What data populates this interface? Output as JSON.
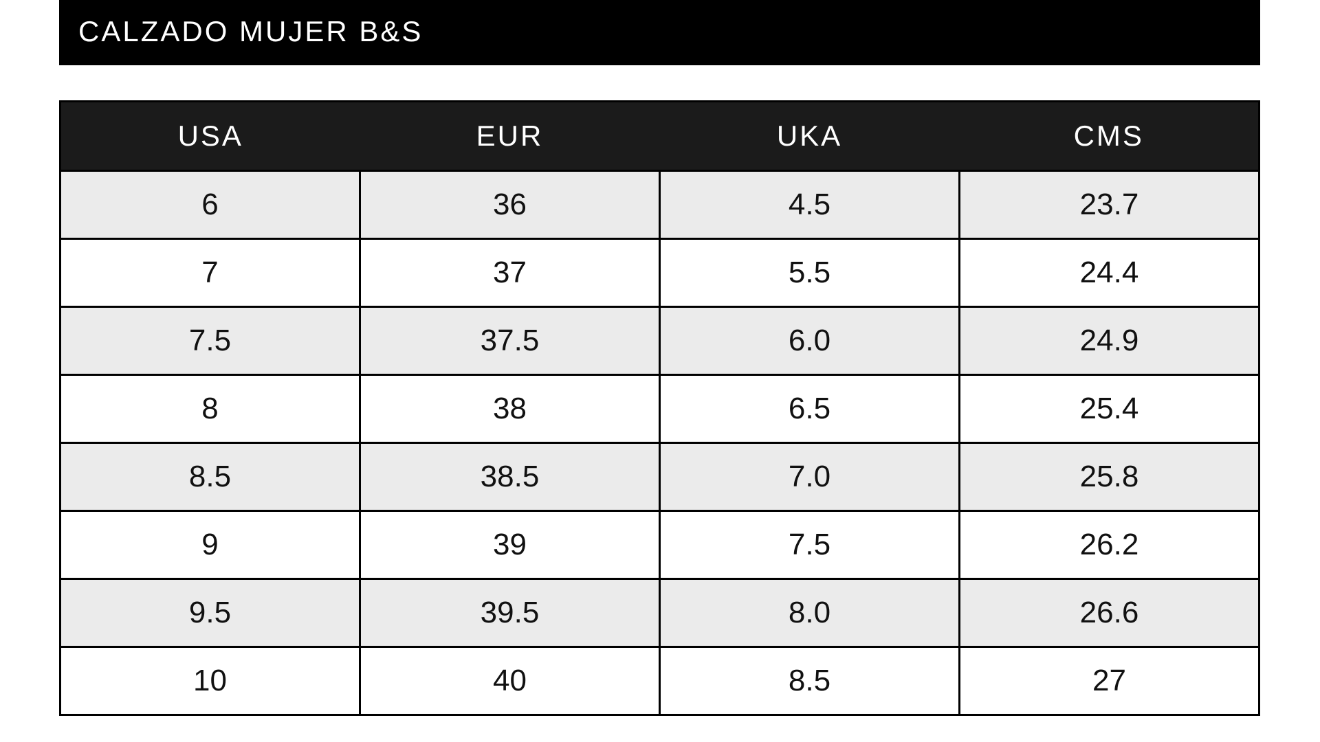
{
  "title": "CALZADO MUJER B&S",
  "headers": [
    "USA",
    "EUR",
    "UKA",
    "CMS"
  ],
  "rows": [
    [
      "6",
      "36",
      "4.5",
      "23.7"
    ],
    [
      "7",
      "37",
      "5.5",
      "24.4"
    ],
    [
      "7.5",
      "37.5",
      "6.0",
      "24.9"
    ],
    [
      "8",
      "38",
      "6.5",
      "25.4"
    ],
    [
      "8.5",
      "38.5",
      "7.0",
      "25.8"
    ],
    [
      "9",
      "39",
      "7.5",
      "26.2"
    ],
    [
      "9.5",
      "39.5",
      "8.0",
      "26.6"
    ],
    [
      "10",
      "40",
      "8.5",
      "27"
    ]
  ],
  "colors": {
    "title_bg": "#000000",
    "header_bg": "#1b1b1b",
    "shaded_row": "#ebebeb"
  }
}
